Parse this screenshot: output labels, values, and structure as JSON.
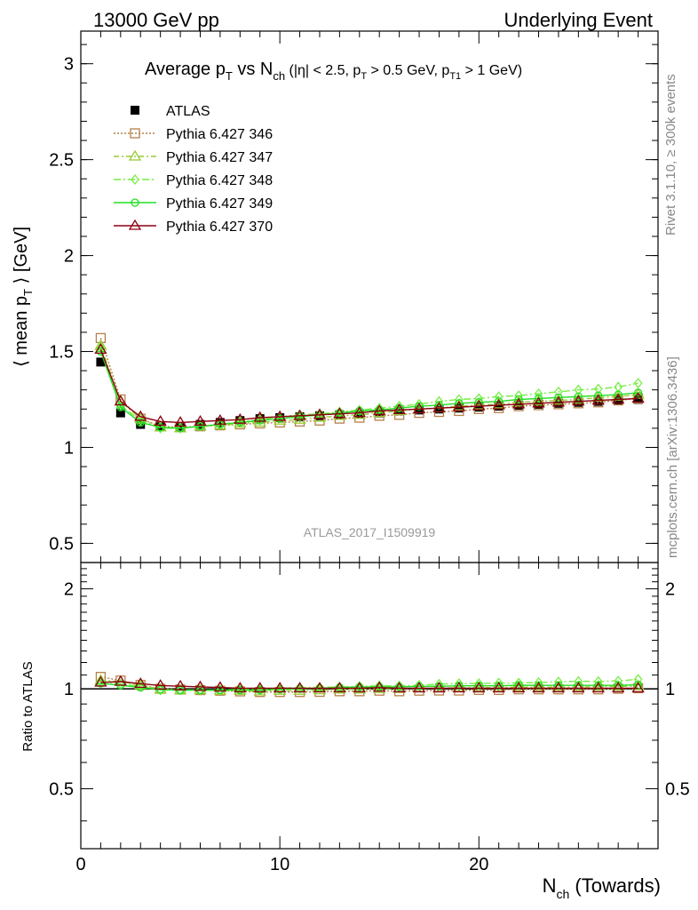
{
  "header": {
    "left": "13000 GeV pp",
    "right": "Underlying Event"
  },
  "side_labels": {
    "rivet": "Rivet 3.1.10, ≥ 300k events",
    "mcplots": "mcplots.cern.ch [arXiv:1306.3436]"
  },
  "watermark": "ATLAS_2017_I1509919",
  "colors": {
    "ATLAS": "#000000",
    "p346": "#b5804a",
    "p347": "#99cc33",
    "p348": "#77ee44",
    "p349": "#22dd22",
    "p370": "#8b0011"
  },
  "chart_data": [
    {
      "type": "line",
      "panel": "main",
      "title": "Average p_T vs N_ch (|η| < 2.5, p_T > 0.5 GeV, p_T1 > 1 GeV)",
      "title_parts": {
        "a": "Average p",
        "b": "T",
        "c": " vs N",
        "d": "ch",
        "e": " (|η| < 2.5, p",
        "f": "T",
        "g": " > 0.5 GeV, p",
        "h": "T1",
        "i": " > 1 GeV)"
      },
      "ylabel": "⟨ mean p_T ⟩ [GeV]",
      "ylabel_parts": {
        "a": "⟨ mean p",
        "b": "T",
        "c": " ⟩ [GeV]"
      },
      "xlim": [
        0,
        29
      ],
      "ylim": [
        0.4,
        3.17
      ],
      "y_ticks": [
        0.5,
        1,
        1.5,
        2,
        2.5,
        3
      ],
      "y_tick_labels": [
        "0.5",
        "1",
        "1.5",
        "2",
        "2.5",
        "3"
      ],
      "legend_position": "top-left",
      "x": [
        1,
        2,
        3,
        4,
        5,
        6,
        7,
        8,
        9,
        10,
        11,
        12,
        13,
        14,
        15,
        16,
        17,
        18,
        19,
        20,
        21,
        22,
        23,
        24,
        25,
        26,
        27,
        28
      ],
      "series": [
        {
          "name": "ATLAS",
          "key": "ATLAS",
          "marker": "square-filled",
          "line": "none",
          "values": [
            1.445,
            1.18,
            1.12,
            1.11,
            1.11,
            1.12,
            1.13,
            1.14,
            1.15,
            1.155,
            1.16,
            1.165,
            1.17,
            1.175,
            1.18,
            1.19,
            1.195,
            1.2,
            1.205,
            1.21,
            1.215,
            1.22,
            1.225,
            1.23,
            1.235,
            1.24,
            1.245,
            1.25
          ]
        },
        {
          "name": "Pythia 6.427 346",
          "key": "p346",
          "marker": "square-open",
          "line": "dotted",
          "values": [
            1.57,
            1.25,
            1.15,
            1.11,
            1.105,
            1.11,
            1.115,
            1.12,
            1.125,
            1.13,
            1.135,
            1.14,
            1.15,
            1.155,
            1.165,
            1.17,
            1.18,
            1.185,
            1.19,
            1.2,
            1.205,
            1.215,
            1.22,
            1.225,
            1.23,
            1.235,
            1.245,
            1.255
          ]
        },
        {
          "name": "Pythia 6.427 347",
          "key": "p347",
          "marker": "triangle-open",
          "line": "dashdot",
          "values": [
            1.53,
            1.24,
            1.15,
            1.105,
            1.1,
            1.11,
            1.115,
            1.125,
            1.13,
            1.14,
            1.145,
            1.155,
            1.165,
            1.17,
            1.18,
            1.19,
            1.2,
            1.205,
            1.215,
            1.22,
            1.225,
            1.235,
            1.24,
            1.245,
            1.25,
            1.26,
            1.265,
            1.275
          ]
        },
        {
          "name": "Pythia 6.427 348",
          "key": "p348",
          "marker": "diamond-open",
          "line": "dashdot2",
          "values": [
            1.52,
            1.22,
            1.14,
            1.1,
            1.1,
            1.11,
            1.12,
            1.135,
            1.145,
            1.16,
            1.17,
            1.175,
            1.185,
            1.195,
            1.205,
            1.215,
            1.225,
            1.24,
            1.25,
            1.255,
            1.265,
            1.27,
            1.28,
            1.29,
            1.3,
            1.305,
            1.315,
            1.335
          ]
        },
        {
          "name": "Pythia 6.427 349",
          "key": "p349",
          "marker": "circle-cross",
          "line": "solid",
          "values": [
            1.5,
            1.21,
            1.13,
            1.105,
            1.1,
            1.11,
            1.12,
            1.13,
            1.14,
            1.15,
            1.16,
            1.17,
            1.18,
            1.19,
            1.195,
            1.205,
            1.215,
            1.22,
            1.23,
            1.235,
            1.24,
            1.25,
            1.255,
            1.26,
            1.265,
            1.27,
            1.275,
            1.285
          ]
        },
        {
          "name": "Pythia 6.427 370",
          "key": "p370",
          "marker": "triangle-open",
          "line": "solid",
          "values": [
            1.51,
            1.24,
            1.16,
            1.135,
            1.13,
            1.135,
            1.14,
            1.145,
            1.155,
            1.16,
            1.165,
            1.17,
            1.175,
            1.18,
            1.19,
            1.195,
            1.2,
            1.205,
            1.21,
            1.215,
            1.22,
            1.225,
            1.23,
            1.235,
            1.24,
            1.245,
            1.25,
            1.255
          ]
        }
      ]
    },
    {
      "type": "line",
      "panel": "ratio",
      "ylabel": "Ratio to ATLAS",
      "xlabel": "N_ch (Towards)",
      "xlabel_parts": {
        "a": "N",
        "b": "ch",
        "c": " (Towards)"
      },
      "xlim": [
        0,
        29
      ],
      "x_ticks": [
        0,
        10,
        20
      ],
      "x_tick_labels": [
        "0",
        "10",
        "20"
      ],
      "ylim": [
        0.33,
        2.4
      ],
      "y_ticks": [
        0.5,
        1,
        2
      ],
      "y_tick_labels": [
        "0.5",
        "1",
        "2"
      ],
      "reference": 1.0,
      "x": [
        1,
        2,
        3,
        4,
        5,
        6,
        7,
        8,
        9,
        10,
        11,
        12,
        13,
        14,
        15,
        16,
        17,
        18,
        19,
        20,
        21,
        22,
        23,
        24,
        25,
        26,
        27,
        28
      ],
      "series": [
        {
          "name": "Pythia 6.427 346",
          "key": "p346",
          "values": [
            1.086,
            1.059,
            1.027,
            1.0,
            0.995,
            0.991,
            0.987,
            0.982,
            0.978,
            0.978,
            0.978,
            0.979,
            0.983,
            0.983,
            0.987,
            0.983,
            0.987,
            0.988,
            0.988,
            0.992,
            0.992,
            0.996,
            0.996,
            0.996,
            0.996,
            0.996,
            1.0,
            1.004
          ]
        },
        {
          "name": "Pythia 6.427 347",
          "key": "p347",
          "values": [
            1.059,
            1.051,
            1.027,
            0.995,
            0.991,
            0.991,
            0.987,
            0.987,
            0.983,
            0.987,
            0.987,
            0.991,
            0.996,
            0.996,
            1.0,
            1.0,
            1.004,
            1.004,
            1.008,
            1.008,
            1.008,
            1.012,
            1.012,
            1.012,
            1.012,
            1.016,
            1.016,
            1.02
          ]
        },
        {
          "name": "Pythia 6.427 348",
          "key": "p348",
          "values": [
            1.052,
            1.034,
            1.018,
            0.991,
            0.991,
            0.991,
            0.991,
            0.996,
            0.996,
            1.004,
            1.009,
            1.009,
            1.013,
            1.017,
            1.021,
            1.021,
            1.025,
            1.033,
            1.037,
            1.037,
            1.041,
            1.041,
            1.045,
            1.049,
            1.053,
            1.052,
            1.056,
            1.068
          ]
        },
        {
          "name": "Pythia 6.427 349",
          "key": "p349",
          "values": [
            1.038,
            1.025,
            1.009,
            0.995,
            0.991,
            0.991,
            0.991,
            0.991,
            0.991,
            0.996,
            1.0,
            1.004,
            1.009,
            1.013,
            1.013,
            1.013,
            1.017,
            1.017,
            1.021,
            1.021,
            1.021,
            1.025,
            1.024,
            1.024,
            1.024,
            1.024,
            1.024,
            1.028
          ]
        },
        {
          "name": "Pythia 6.427 370",
          "key": "p370",
          "values": [
            1.045,
            1.051,
            1.036,
            1.023,
            1.018,
            1.013,
            1.009,
            1.004,
            1.004,
            1.004,
            1.004,
            1.004,
            1.004,
            1.004,
            1.008,
            1.004,
            1.004,
            1.004,
            1.004,
            1.004,
            1.004,
            1.004,
            1.004,
            1.004,
            1.004,
            1.004,
            1.004,
            1.004
          ]
        }
      ]
    }
  ]
}
